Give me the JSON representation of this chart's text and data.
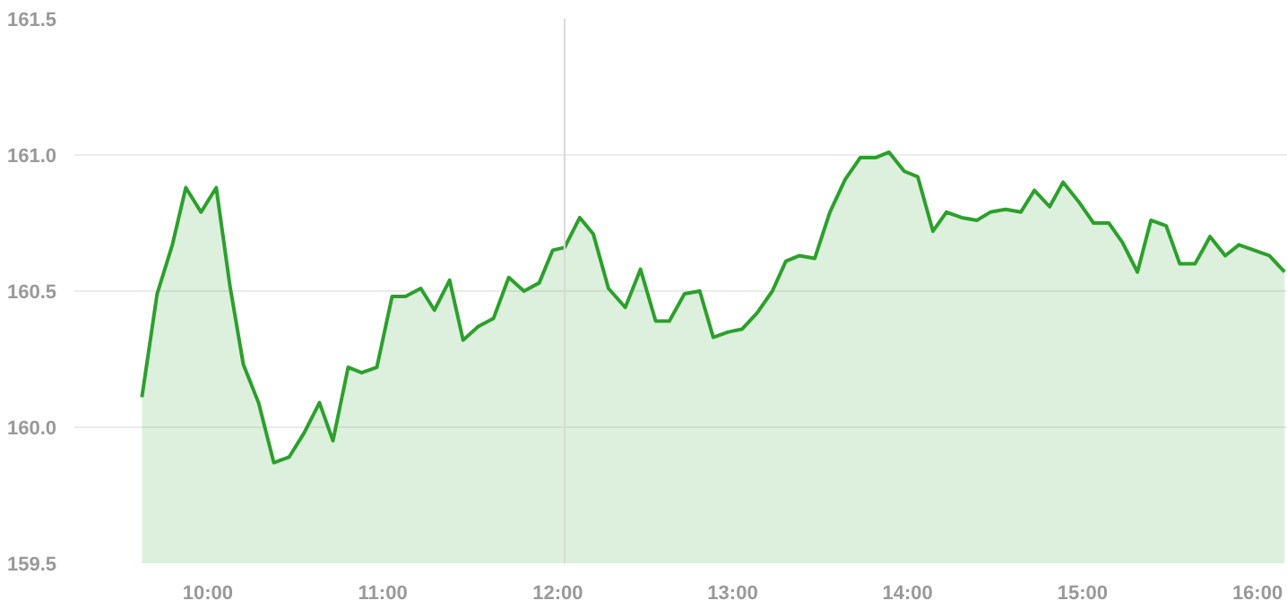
{
  "chart_data": {
    "type": "area",
    "x": [
      9.623,
      9.71,
      9.797,
      9.874,
      9.961,
      10.048,
      10.126,
      10.203,
      10.29,
      10.377,
      10.464,
      10.551,
      10.638,
      10.715,
      10.802,
      10.879,
      10.966,
      11.053,
      11.13,
      11.217,
      11.295,
      11.382,
      11.459,
      11.546,
      11.633,
      11.72,
      11.807,
      11.894,
      11.971,
      12.039,
      12.126,
      12.203,
      12.29,
      12.386,
      12.473,
      12.56,
      12.638,
      12.725,
      12.812,
      12.889,
      12.976,
      13.053,
      13.14,
      13.227,
      13.304,
      13.382,
      13.469,
      13.556,
      13.643,
      13.729,
      13.816,
      13.894,
      13.981,
      14.058,
      14.145,
      14.222,
      14.309,
      14.396,
      14.473,
      14.56,
      14.647,
      14.725,
      14.812,
      14.889,
      14.976,
      15.063,
      15.15,
      15.227,
      15.314,
      15.391,
      15.478,
      15.556,
      15.643,
      15.729,
      15.816,
      15.894,
      15.981,
      16.068,
      16.155
    ],
    "series": [
      {
        "color": "#2ca02c",
        "values": [
          160.11,
          160.49,
          160.67,
          160.88,
          160.79,
          160.88,
          160.52,
          160.23,
          160.09,
          159.87,
          159.89,
          159.98,
          160.09,
          159.95,
          160.22,
          160.2,
          160.22,
          160.48,
          160.48,
          160.51,
          160.43,
          160.54,
          160.32,
          160.37,
          160.4,
          160.55,
          160.5,
          160.53,
          160.65,
          160.66,
          160.77,
          160.71,
          160.51,
          160.44,
          160.58,
          160.39,
          160.39,
          160.49,
          160.5,
          160.33,
          160.35,
          160.36,
          160.42,
          160.5,
          160.61,
          160.63,
          160.62,
          160.79,
          160.91,
          160.99,
          160.99,
          161.01,
          160.94,
          160.92,
          160.72,
          160.79,
          160.77,
          160.76,
          160.79,
          160.8,
          160.79,
          160.87,
          160.81,
          160.9,
          160.83,
          160.75,
          160.75,
          160.68,
          160.57,
          160.76,
          160.74,
          160.6,
          160.6,
          160.7,
          160.63,
          160.67,
          160.65,
          160.63,
          160.57
        ]
      }
    ],
    "xlim": [
      9.237,
      16.174
    ],
    "ylim": [
      159.5,
      161.5
    ],
    "xticks": [
      {
        "value": 10,
        "label": "10:00"
      },
      {
        "value": 11,
        "label": "11:00"
      },
      {
        "value": 12,
        "label": "12:00"
      },
      {
        "value": 13,
        "label": "13:00"
      },
      {
        "value": 14,
        "label": "14:00"
      },
      {
        "value": 15,
        "label": "15:00"
      },
      {
        "value": 16,
        "label": "16:00"
      }
    ],
    "yticks": [
      159.5,
      {
        "value": 160.0,
        "label": "160.0"
      },
      160.5,
      {
        "value": 161.0,
        "label": "161.0"
      },
      161.5
    ],
    "grid": "y",
    "ref_lines": [
      {
        "axis": "x",
        "value": 12.039,
        "color": "#d9d9d9"
      }
    ]
  }
}
